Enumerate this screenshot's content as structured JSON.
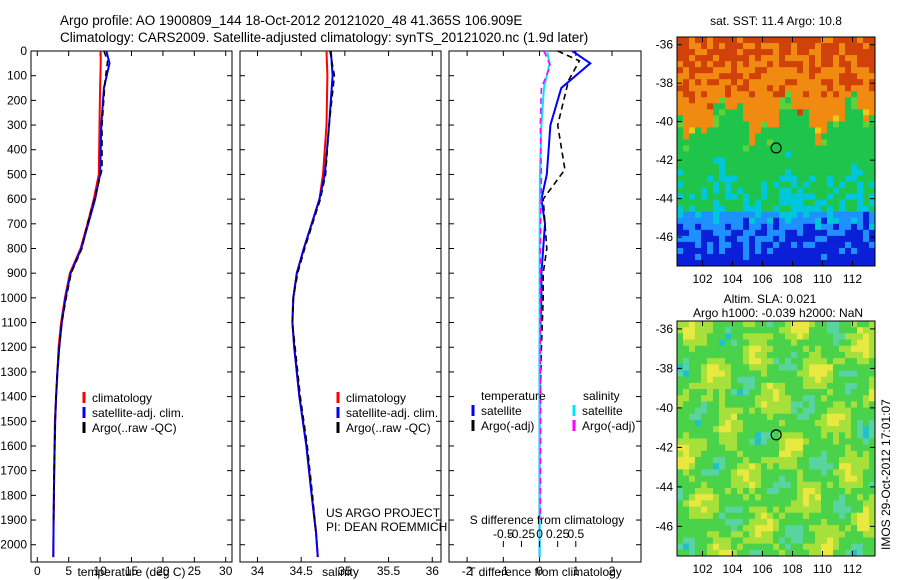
{
  "header": {
    "title_line1": "Argo profile: AO 1900809_144 18-Oct-2012 20121020_48 41.365S 106.909E",
    "title_line2": "Climatology: CARS2009. Satellite-adjusted climatology: synTS_20121020.nc (1.9d later)"
  },
  "stamp": "IMOS 29-Oct-2012 17:01:07",
  "colors": {
    "climatology": "#ff0000",
    "satellite": "#0000ff",
    "argo": "#000000",
    "salinity_satellite": "#00e5ff",
    "salinity_argo": "#ff00ff"
  },
  "chart_data": [
    {
      "type": "line",
      "name": "temperature-profile",
      "xlabel": "temperature (deg C)",
      "ylabel": "",
      "xlim": [
        -1,
        31
      ],
      "ylim": [
        2070,
        0
      ],
      "xticks": [
        0,
        5,
        10,
        15,
        20,
        25,
        30
      ],
      "yticks": [
        0,
        100,
        200,
        300,
        400,
        500,
        600,
        700,
        800,
        900,
        1000,
        1100,
        1200,
        1300,
        1400,
        1500,
        1600,
        1700,
        1800,
        1900,
        2000
      ],
      "legend": {
        "position": "bottom-center",
        "entries": [
          "climatology",
          "satellite-adj. clim.",
          "Argo(..raw -QC)"
        ]
      },
      "series": [
        {
          "key": "climatology",
          "color": "#ff0000",
          "x": [
            10.1,
            10.1,
            10.0,
            9.9,
            9.8,
            9.0,
            8.0,
            6.9,
            5.2,
            4.4,
            3.8,
            3.4,
            3.2,
            3.0,
            2.8,
            2.7,
            2.6,
            2.55
          ],
          "y": [
            0,
            50,
            150,
            300,
            500,
            600,
            700,
            800,
            900,
            1000,
            1100,
            1200,
            1300,
            1400,
            1500,
            1700,
            1900,
            2050
          ]
        },
        {
          "key": "satellite",
          "color": "#0000ff",
          "x": [
            11.0,
            11.5,
            10.6,
            10.2,
            10.0,
            9.2,
            8.1,
            7.0,
            5.3,
            4.5,
            3.9,
            3.5,
            3.2,
            3.0,
            2.85,
            2.7,
            2.6,
            2.55
          ],
          "y": [
            0,
            50,
            150,
            300,
            500,
            600,
            700,
            800,
            900,
            1000,
            1100,
            1200,
            1300,
            1400,
            1500,
            1700,
            1900,
            2050
          ]
        },
        {
          "key": "argo",
          "color": "#000000",
          "x": [
            10.6,
            11.2,
            10.8,
            10.3,
            10.3,
            9.1,
            8.0,
            7.1,
            5.4,
            4.6,
            3.9,
            3.5,
            3.2,
            3.0,
            2.85,
            2.7,
            2.6
          ],
          "y": [
            0,
            40,
            120,
            300,
            480,
            600,
            700,
            800,
            900,
            1000,
            1100,
            1200,
            1300,
            1400,
            1500,
            1700,
            1900
          ]
        }
      ]
    },
    {
      "type": "line",
      "name": "salinity-profile",
      "xlabel": "salinity",
      "ylabel": "",
      "xlim": [
        33.8,
        36.1
      ],
      "ylim": [
        2070,
        0
      ],
      "xticks": [
        34,
        34.5,
        35,
        35.5,
        36
      ],
      "xtick_labels": [
        "34",
        "34.5",
        "35",
        "35.5",
        "36"
      ],
      "legend": {
        "position": "bottom-right",
        "entries": [
          "climatology",
          "satellite-adj. clim.",
          "Argo(..raw -QC)"
        ]
      },
      "annotation": [
        "US ARGO PROJECT",
        "PI: DEAN ROEMMICH"
      ],
      "series": [
        {
          "key": "climatology",
          "color": "#ff0000",
          "x": [
            34.79,
            34.8,
            34.79,
            34.75,
            34.71,
            34.62,
            34.53,
            34.45,
            34.41,
            34.4,
            34.42,
            34.48,
            34.56,
            34.62,
            34.67,
            34.69
          ],
          "y": [
            0,
            100,
            300,
            500,
            600,
            700,
            800,
            900,
            1000,
            1100,
            1200,
            1400,
            1600,
            1800,
            1950,
            2050
          ]
        },
        {
          "key": "satellite",
          "color": "#0000ff",
          "x": [
            34.84,
            34.86,
            34.82,
            34.77,
            34.71,
            34.62,
            34.53,
            34.45,
            34.41,
            34.4,
            34.42,
            34.48,
            34.56,
            34.62,
            34.67,
            34.69
          ],
          "y": [
            0,
            100,
            300,
            500,
            600,
            700,
            800,
            900,
            1000,
            1100,
            1200,
            1400,
            1600,
            1800,
            1950,
            2050
          ]
        },
        {
          "key": "argo",
          "color": "#000000",
          "x": [
            34.83,
            34.88,
            34.82,
            34.78,
            34.72,
            34.63,
            34.54,
            34.46,
            34.41,
            34.4,
            34.43,
            34.49,
            34.57,
            34.63,
            34.67
          ],
          "y": [
            0,
            100,
            300,
            500,
            600,
            700,
            800,
            900,
            1000,
            1100,
            1200,
            1400,
            1600,
            1800,
            1950
          ]
        }
      ]
    },
    {
      "type": "line",
      "name": "difference-profile",
      "xlabel": "T difference from climatology",
      "xlabel_top": "S difference from climatology",
      "ylabel": "",
      "xlim": [
        -2.5,
        2.8
      ],
      "ylim": [
        2070,
        0
      ],
      "xticks": [
        -2,
        -1,
        0,
        1,
        2
      ],
      "xticks_s": [
        -0.5,
        -0.25,
        0,
        0.25,
        0.5
      ],
      "xtick_labels_s": [
        "-0.5",
        "-0.25",
        "0",
        "0.25",
        "0.5"
      ],
      "legend": {
        "position": "bottom-center",
        "headers": [
          "temperature",
          "salinity"
        ],
        "entries": [
          "satellite",
          "Argo(-adj)",
          "satellite",
          "Argo(-adj)"
        ]
      },
      "series": [
        {
          "key": "t_satellite",
          "color": "#0000ff",
          "x": [
            0.9,
            1.4,
            0.6,
            0.3,
            0.2,
            0.05,
            0.15,
            0.1,
            0.05,
            0.05,
            0.0,
            0.0,
            0.0,
            0.0
          ],
          "y": [
            0,
            50,
            150,
            300,
            500,
            600,
            700,
            800,
            900,
            1000,
            1200,
            1400,
            1700,
            2050
          ]
        },
        {
          "key": "t_argo",
          "color": "#000000",
          "x": [
            0.5,
            1.1,
            0.8,
            0.5,
            0.7,
            0.1,
            0.15,
            0.2,
            0.1,
            0.1,
            0.05,
            0.0,
            0.0
          ],
          "y": [
            0,
            40,
            120,
            300,
            480,
            600,
            700,
            800,
            900,
            1000,
            1200,
            1500,
            1900
          ]
        },
        {
          "key": "s_satellite",
          "color": "#00e5ff",
          "x": [
            0.2,
            0.28,
            0.12,
            0.05,
            0.01,
            0.0,
            0.0,
            0.0,
            0.0
          ],
          "y": [
            0,
            50,
            150,
            300,
            500,
            800,
            1200,
            1600,
            2050
          ]
        },
        {
          "key": "s_argo",
          "color": "#ff00ff",
          "x": [
            0.12,
            0.3,
            0.05,
            0.02,
            0.05,
            0.02,
            0.02,
            0.03,
            0.02
          ],
          "y": [
            0,
            60,
            150,
            300,
            500,
            800,
            1100,
            1500,
            1900
          ]
        }
      ]
    },
    {
      "type": "heatmap",
      "name": "sst-map",
      "title": "sat. SST: 11.4  Argo: 10.8",
      "xlim": [
        100.3,
        113.5
      ],
      "ylim": [
        -47.5,
        -35.6
      ],
      "xticks": [
        102,
        104,
        106,
        108,
        110,
        112
      ],
      "yticks": [
        -36,
        -38,
        -40,
        -42,
        -44,
        -46
      ],
      "marker": {
        "lon": 106.909,
        "lat": -41.365
      }
    },
    {
      "type": "heatmap",
      "name": "sla-map",
      "title_lines": [
        "Altim. SLA: 0.021",
        "Argo h1000: -0.039 h2000: NaN"
      ],
      "xlim": [
        100.3,
        113.5
      ],
      "ylim": [
        -47.5,
        -35.6
      ],
      "xticks": [
        102,
        104,
        106,
        108,
        110,
        112
      ],
      "yticks": [
        -36,
        -38,
        -40,
        -42,
        -44,
        -46
      ],
      "marker": {
        "lon": 106.909,
        "lat": -41.365
      }
    }
  ]
}
